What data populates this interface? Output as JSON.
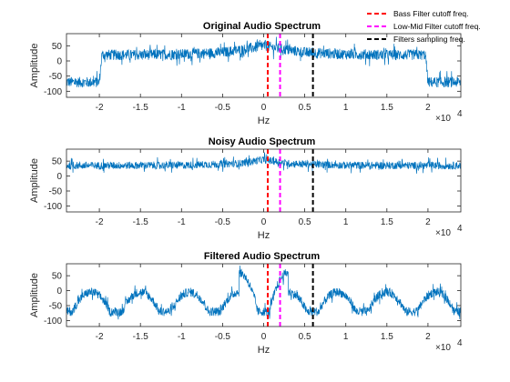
{
  "colors": {
    "signal": "#0072BD",
    "bass_line": "#FF0000",
    "lowmid_line": "#FF00FF",
    "sampling_line": "#000000",
    "axis": "#262626"
  },
  "legend": {
    "placement": "top-right",
    "items": [
      {
        "label": "Bass Filter cutoff freq.",
        "color": "#FF0000"
      },
      {
        "label": "Low-Mid Filter cutoff freq.",
        "color": "#FF00FF"
      },
      {
        "label": "Filters sampling freq.",
        "color": "#000000"
      }
    ]
  },
  "chart_data": [
    {
      "type": "line",
      "title": "Original Audio Spectrum",
      "xlabel": "Hz",
      "ylabel": "Amplitude",
      "x_exponent_label": "×10",
      "x_exponent": "4",
      "xlim": [
        -24000,
        24000
      ],
      "ylim": [
        -120,
        90
      ],
      "xticks": [
        -2,
        -1.5,
        -1,
        -0.5,
        0,
        0.5,
        1,
        1.5,
        2
      ],
      "xtick_labels": [
        "-2",
        "-1.5",
        "-1",
        "-0.5",
        "0",
        "0.5",
        "1",
        "1.5",
        "2"
      ],
      "yticks": [
        50,
        0,
        -50,
        -100
      ],
      "ytick_labels": [
        "50",
        "0",
        "-50",
        "-100"
      ],
      "grid": false,
      "cutoff_lines": {
        "bass": 500,
        "lowmid": 2000,
        "sampling": 6000
      },
      "series": [
        {
          "envelope": [
            [
              -24000,
              -70
            ],
            [
              -20000,
              -70
            ],
            [
              -19700,
              20
            ],
            [
              -15000,
              20
            ],
            [
              -10000,
              22
            ],
            [
              -5000,
              28
            ],
            [
              -2000,
              40
            ],
            [
              0,
              50
            ],
            [
              2000,
              40
            ],
            [
              5000,
              28
            ],
            [
              10000,
              22
            ],
            [
              15000,
              20
            ],
            [
              19700,
              20
            ],
            [
              20000,
              -70
            ],
            [
              24000,
              -70
            ]
          ],
          "noise_spread": 35
        }
      ]
    },
    {
      "type": "line",
      "title": "Noisy Audio Spectrum",
      "xlabel": "Hz",
      "ylabel": "Amplitude",
      "x_exponent_label": "×10",
      "x_exponent": "4",
      "xlim": [
        -24000,
        24000
      ],
      "ylim": [
        -120,
        90
      ],
      "xticks": [
        -2,
        -1.5,
        -1,
        -0.5,
        0,
        0.5,
        1,
        1.5,
        2
      ],
      "xtick_labels": [
        "-2",
        "-1.5",
        "-1",
        "-0.5",
        "0",
        "0.5",
        "1",
        "1.5",
        "2"
      ],
      "yticks": [
        50,
        0,
        -50,
        -100
      ],
      "ytick_labels": [
        "50",
        "0",
        "-50",
        "-100"
      ],
      "grid": false,
      "cutoff_lines": {
        "bass": 500,
        "lowmid": 2000,
        "sampling": 6000
      },
      "series": [
        {
          "envelope": [
            [
              -24000,
              35
            ],
            [
              -10000,
              36
            ],
            [
              -3000,
              42
            ],
            [
              0,
              55
            ],
            [
              3000,
              42
            ],
            [
              10000,
              36
            ],
            [
              24000,
              35
            ]
          ],
          "noise_spread": 25
        }
      ]
    },
    {
      "type": "line",
      "title": "Filtered Audio Spectrum",
      "xlabel": "Hz",
      "ylabel": "Amplitude",
      "x_exponent_label": "×10",
      "x_exponent": "4",
      "xlim": [
        -24000,
        24000
      ],
      "ylim": [
        -120,
        90
      ],
      "xticks": [
        -2,
        -1.5,
        -1,
        -0.5,
        0,
        0.5,
        1,
        1.5,
        2
      ],
      "xtick_labels": [
        "-2",
        "-1.5",
        "-1",
        "-0.5",
        "0",
        "0.5",
        "1",
        "1.5",
        "2"
      ],
      "yticks": [
        50,
        0,
        -50,
        -100
      ],
      "ytick_labels": [
        "50",
        "0",
        "-50",
        "-100"
      ],
      "grid": false,
      "cutoff_lines": {
        "bass": 500,
        "lowmid": 2000,
        "sampling": 6000
      },
      "series": [
        {
          "lobe_period": 6000,
          "center_peak": 60,
          "side_lobe_peak": -5,
          "null_level": -70,
          "noise_spread": 30
        }
      ]
    }
  ]
}
